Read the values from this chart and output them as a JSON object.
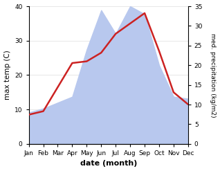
{
  "months": [
    "Jan",
    "Feb",
    "Mar",
    "Apr",
    "May",
    "Jun",
    "Jul",
    "Aug",
    "Sep",
    "Oct",
    "Nov",
    "Dec"
  ],
  "temperature": [
    8.5,
    9.5,
    16.5,
    23.5,
    24.0,
    26.5,
    32.0,
    35.0,
    38.0,
    27.0,
    15.0,
    11.5
  ],
  "precipitation": [
    8.0,
    9.0,
    10.5,
    12.0,
    24.0,
    34.0,
    28.0,
    35.0,
    33.0,
    20.0,
    12.0,
    11.5
  ],
  "temp_color": "#cc2222",
  "precip_color": "#b8c8ee",
  "temp_ylim": [
    0,
    40
  ],
  "precip_ylim": [
    0,
    35
  ],
  "temp_yticks": [
    0,
    10,
    20,
    30,
    40
  ],
  "precip_yticks": [
    0,
    5,
    10,
    15,
    20,
    25,
    30,
    35
  ],
  "ylabel_left": "max temp (C)",
  "ylabel_right": "med. precipitation (kg/m2)",
  "xlabel": "date (month)",
  "background_color": "#ffffff",
  "line_width": 1.8
}
